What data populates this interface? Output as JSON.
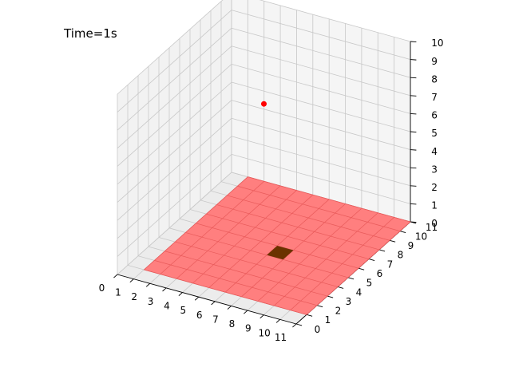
{
  "title_text": "Time=1s",
  "chart_data": {
    "type": "scatter",
    "title": "Time=1s",
    "xlabel": "",
    "ylabel": "",
    "zlabel": "",
    "xlim": [
      0,
      11
    ],
    "ylim": [
      0,
      11
    ],
    "zlim": [
      0,
      10
    ],
    "x_ticks": [
      "0",
      "1",
      "2",
      "3",
      "4",
      "5",
      "6",
      "7",
      "8",
      "9",
      "10",
      "11"
    ],
    "y_ticks": [
      "0",
      "1",
      "2",
      "3",
      "4",
      "5",
      "6",
      "7",
      "8",
      "9",
      "10",
      "11"
    ],
    "z_ticks": [
      "0",
      "1",
      "2",
      "3",
      "4",
      "5",
      "6",
      "7",
      "8",
      "9",
      "10"
    ],
    "grid": true,
    "surface": {
      "z": 0,
      "x_range": [
        1,
        11
      ],
      "y_range": [
        1,
        11
      ],
      "color": "#ff7f7f",
      "edge_color": "#e85a5a"
    },
    "highlight_cell": {
      "x": [
        6,
        7
      ],
      "y": [
        5,
        6
      ],
      "z": 0,
      "color": "#6b3200"
    },
    "points": [
      {
        "x": 5.5,
        "y": 5.5,
        "z": 8,
        "color": "#ff0000"
      }
    ]
  }
}
